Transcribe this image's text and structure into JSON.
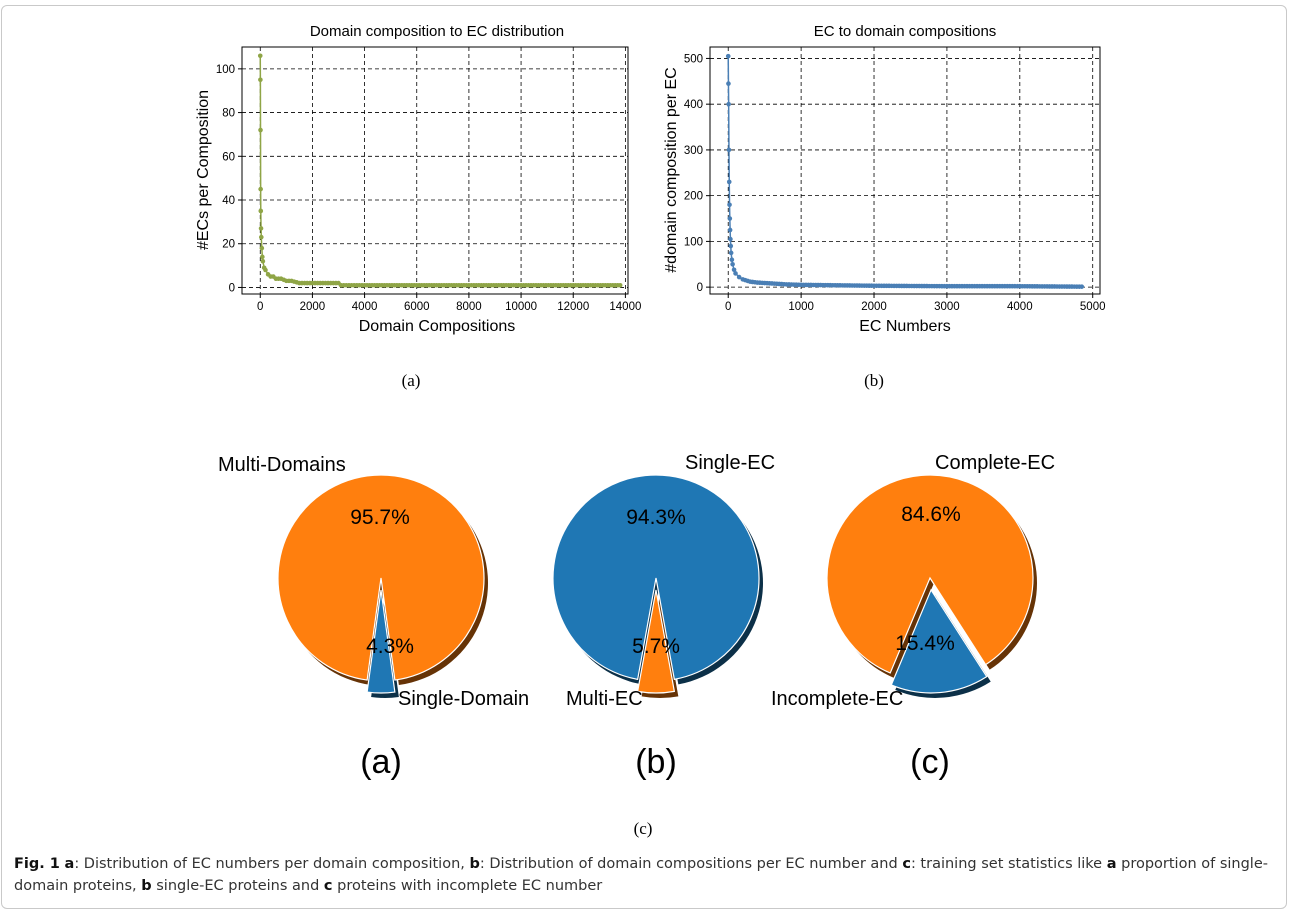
{
  "figure": {
    "sub_a_label": "(a)",
    "sub_b_label": "(b)",
    "sub_c_label": "(c)"
  },
  "caption": {
    "fig_label": "Fig. 1",
    "part_a": "a",
    "text_a": ": Distribution of EC numbers per domain composition, ",
    "part_b": "b",
    "text_b": ": Distribution of domain compositions per EC number and ",
    "part_c": "c",
    "text_c": ": training set statistics like ",
    "part_a2": "a",
    "text_a2": " proportion of single-domain proteins, ",
    "part_b2": "b",
    "text_b2": " single-EC proteins and ",
    "part_c2": "c",
    "text_c2": " proteins with incomplete EC number"
  },
  "chart_data": [
    {
      "type": "line",
      "title": "Domain composition to EC distribution",
      "xlabel": "Domain Compositions",
      "ylabel": "#ECs per Composition",
      "xlim": [
        -700,
        14100
      ],
      "ylim": [
        -3,
        110
      ],
      "xticks": [
        0,
        2000,
        4000,
        6000,
        8000,
        10000,
        12000,
        14000
      ],
      "yticks": [
        0,
        20,
        40,
        60,
        80,
        100
      ],
      "grid": true,
      "color": "#8fa546",
      "x": [
        0,
        5,
        10,
        15,
        20,
        30,
        40,
        60,
        80,
        100,
        150,
        200,
        300,
        400,
        500,
        600,
        800,
        1000,
        1200,
        1500,
        2000,
        2500,
        3000,
        3100,
        4000,
        6000,
        8000,
        10000,
        12000,
        13800
      ],
      "y": [
        106,
        95,
        72,
        45,
        35,
        27,
        23,
        18,
        14,
        12,
        9,
        8,
        6,
        5,
        5,
        4,
        4,
        3,
        3,
        2,
        2,
        2,
        2,
        1,
        1,
        1,
        1,
        1,
        1,
        1
      ]
    },
    {
      "type": "line",
      "title": "EC to domain compositions",
      "xlabel": "EC Numbers",
      "ylabel": "#domain composition per EC",
      "xlim": [
        -250,
        5100
      ],
      "ylim": [
        -15,
        525
      ],
      "xticks": [
        0,
        1000,
        2000,
        3000,
        4000,
        5000
      ],
      "yticks": [
        0,
        100,
        200,
        300,
        400,
        500
      ],
      "grid": true,
      "color": "#4a7fb5",
      "x": [
        0,
        3,
        6,
        10,
        14,
        18,
        22,
        26,
        30,
        35,
        40,
        50,
        60,
        80,
        100,
        150,
        200,
        300,
        400,
        600,
        800,
        1000,
        1500,
        2000,
        3000,
        4000,
        4850
      ],
      "y": [
        505,
        445,
        400,
        300,
        230,
        180,
        150,
        125,
        105,
        90,
        75,
        60,
        50,
        38,
        30,
        22,
        17,
        12,
        10,
        8,
        6,
        5,
        4,
        3,
        2,
        2,
        1
      ]
    },
    {
      "type": "pie",
      "panel_label": "(a)",
      "labels": [
        "Multi-Domains",
        "Single-Domain"
      ],
      "values": [
        95.7,
        4.3
      ],
      "pct_labels": [
        "95.7%",
        "4.3%"
      ],
      "colors": [
        "#ff7f0e",
        "#1f77b4"
      ],
      "exploded": "Single-Domain"
    },
    {
      "type": "pie",
      "panel_label": "(b)",
      "labels": [
        "Single-EC",
        "Multi-EC"
      ],
      "values": [
        94.3,
        5.7
      ],
      "pct_labels": [
        "94.3%",
        "5.7%"
      ],
      "colors": [
        "#1f77b4",
        "#ff7f0e"
      ],
      "exploded": "Multi-EC"
    },
    {
      "type": "pie",
      "panel_label": "(c)",
      "labels": [
        "Complete-EC",
        "Incomplete-EC"
      ],
      "values": [
        84.6,
        15.4
      ],
      "pct_labels": [
        "84.6%",
        "15.4%"
      ],
      "colors": [
        "#ff7f0e",
        "#1f77b4"
      ],
      "exploded": "Incomplete-EC"
    }
  ]
}
